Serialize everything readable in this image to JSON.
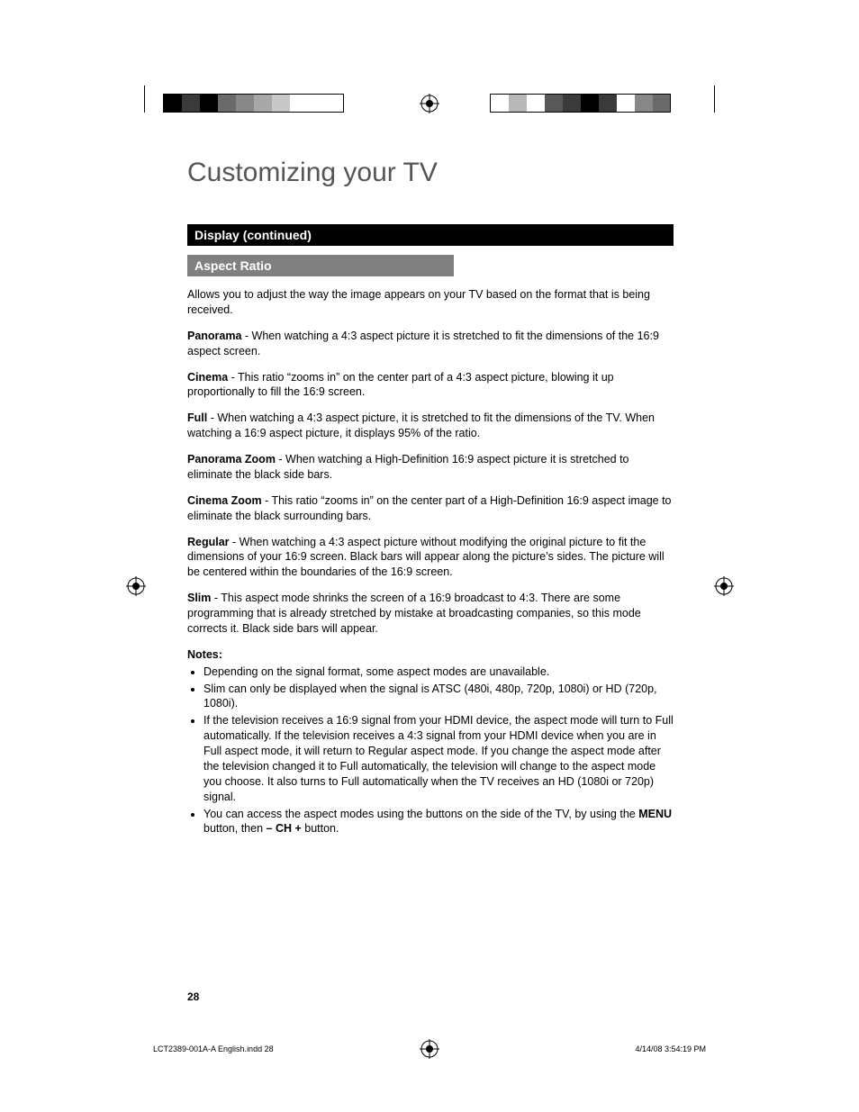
{
  "colors": {
    "title": "#555555",
    "barBlackBg": "#000000",
    "barGrayBg": "#808080",
    "barText": "#ffffff",
    "bodyText": "#000000",
    "pageBg": "#ffffff"
  },
  "registration": {
    "leftSwatches": [
      "#000000",
      "#3a3a3a",
      "#000000",
      "#6a6a6a",
      "#888888",
      "#a8a8a8",
      "#c8c8c8",
      "#ffffff",
      "#ffffff",
      "#ffffff"
    ],
    "rightSwatches": [
      "#ffffff",
      "#b8b8b8",
      "#ffffff",
      "#585858",
      "#3a3a3a",
      "#000000",
      "#3a3a3a",
      "#ffffff",
      "#888888",
      "#6a6a6a"
    ],
    "swatchWidth": 20,
    "swatchHeight": 20
  },
  "title": "Customizing your TV",
  "sectionBar": "Display (continued)",
  "subsectionBar": "Aspect Ratio",
  "intro": "Allows you to adjust the way the image appears on your TV based on the format that is being received.",
  "modes": [
    {
      "name": "Panorama",
      "desc": " - When watching a 4:3 aspect picture it is stretched to fit the dimensions of the 16:9 aspect screen."
    },
    {
      "name": "Cinema",
      "desc": " - This ratio “zooms in” on the center part of a 4:3 aspect picture, blowing it up proportionally to fill the 16:9 screen."
    },
    {
      "name": "Full",
      "desc": " - When watching a 4:3 aspect picture, it is stretched to fit the dimensions of the TV.  When watching a 16:9 aspect picture, it displays 95% of the ratio."
    },
    {
      "name": "Panorama Zoom",
      "desc": " - When watching a High-Definition 16:9 aspect picture it is stretched to eliminate the black side bars."
    },
    {
      "name": "Cinema Zoom",
      "desc": " - This ratio “zooms in” on the center part of a High-Definition 16:9 aspect image to eliminate the black surrounding bars."
    },
    {
      "name": "Regular",
      "desc": " - When watching a 4:3 aspect picture without modifying the original picture to fit the dimensions of your 16:9 screen.  Black bars will appear along the picture’s sides. The picture will be centered within the boundaries of the 16:9 screen."
    },
    {
      "name": "Slim",
      "desc": " - This aspect mode shrinks the screen of a 16:9 broadcast to 4:3.  There are some programming that is already stretched by mistake at broadcasting companies, so this mode corrects it.  Black side bars will appear."
    }
  ],
  "notesHeading": "Notes:",
  "notes": [
    "Depending on the signal format, some aspect modes are unavailable.",
    "Slim can only be displayed when the signal is ATSC (480i, 480p, 720p, 1080i) or HD (720p, 1080i).",
    "If the television receives a 16:9 signal from your HDMI device, the aspect mode will turn to Full automatically.  If the television receives a 4:3 signal from your HDMI device when you are in Full aspect mode, it will return to Regular aspect mode.  If you change the aspect mode after the television changed it to Full automatically, the television will change to the aspect mode you choose.  It also turns to Full automatically when the TV receives an HD (1080i or 720p) signal."
  ],
  "lastNote": {
    "pre": "You can access the aspect modes using the buttons on the side of the TV, by using the ",
    "b1": "MENU",
    "mid": " button, then ",
    "b2": "– CH +",
    "post": " button."
  },
  "pageNumber": "28",
  "footer": {
    "left": "LCT2389-001A-A English.indd   28",
    "right": "4/14/08   3:54:19 PM"
  }
}
